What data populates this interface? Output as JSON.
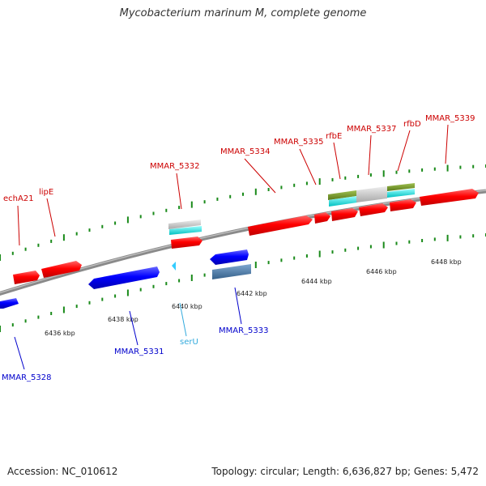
{
  "title": "Mycobacterium marinum M, complete genome",
  "footer": {
    "accession": "Accession: NC_010612",
    "topology": "Topology: circular; Length: 6,636,827 bp; Genes: 5,472"
  },
  "colors": {
    "forward_gene": "#ff0000",
    "reverse_gene": "#0000ff",
    "trna": "#33ccff",
    "grey_feature": "#bbbbbb",
    "cyan_feature": "#00e5e5",
    "olive_feature": "#6b8e23",
    "steel_feature": "#4a7fb0",
    "backbone": "#888888",
    "tick": "#1a8a1a",
    "forward_label": "#cc0000",
    "reverse_label": "#0000cc",
    "trna_label": "#33aadd"
  },
  "scale": {
    "unit": "kbp",
    "labels": [
      "6436 kbp",
      "6438 kbp",
      "6440 kbp",
      "6442 kbp",
      "6444 kbp",
      "6446 kbp",
      "6448 kbp"
    ]
  },
  "forward_labels": [
    "echA21",
    "lipE",
    "MMAR_5332",
    "MMAR_5334",
    "MMAR_5335",
    "rfbE",
    "MMAR_5337",
    "rfbD",
    "MMAR_5339"
  ],
  "reverse_labels": [
    "MMAR_5328",
    "MMAR_5331",
    "serU",
    "MMAR_5333"
  ]
}
